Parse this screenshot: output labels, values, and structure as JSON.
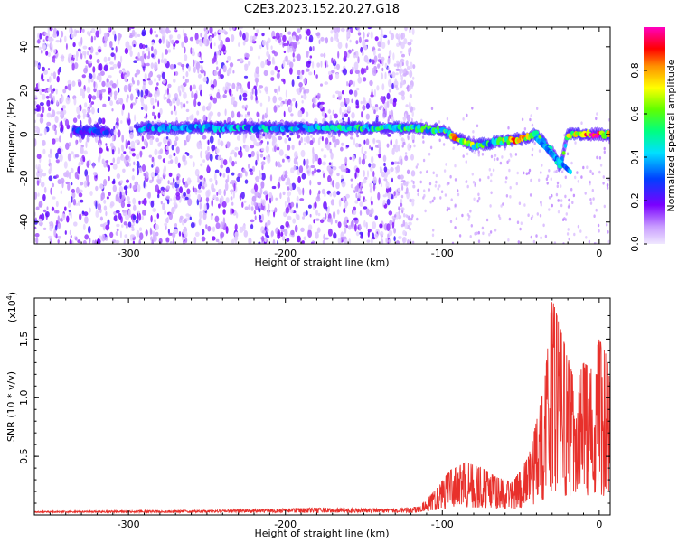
{
  "title": "C2E3.2023.152.20.27.G18",
  "chart_data": [
    {
      "type": "heatmap",
      "xlabel": "Height of straight line (km)",
      "ylabel": "Frequency (Hz)",
      "xlim": [
        -360,
        7
      ],
      "ylim": [
        -50,
        49
      ],
      "xticks": [
        -300,
        -200,
        -100,
        0
      ],
      "yticks": [
        -40,
        -20,
        0,
        20,
        40
      ],
      "colorbar": {
        "label": "Normalized spectral amplitude",
        "range": [
          0.0,
          1.0
        ],
        "ticks": [
          0.0,
          0.2,
          0.4,
          0.6,
          0.8
        ],
        "colormap": "rainbow"
      },
      "ridge": {
        "x": [
          -335,
          -310,
          -300,
          -290,
          -200,
          -150,
          -120,
          -100,
          -90,
          -80,
          -70,
          -60,
          -50,
          -40,
          -30,
          -25,
          -20,
          -10,
          0,
          7
        ],
        "y": [
          1.5,
          1.5,
          1.5,
          3,
          3,
          3,
          3,
          2,
          -2,
          -5,
          -4,
          -3,
          -2,
          0,
          -8,
          -15,
          0,
          0,
          0,
          0
        ],
        "amplitude": [
          0.3,
          0.3,
          0.15,
          0.4,
          0.45,
          0.5,
          0.55,
          0.6,
          0.8,
          0.65,
          0.5,
          0.75,
          0.85,
          0.6,
          0.5,
          0.45,
          0.7,
          0.9,
          1.0,
          0.8
        ]
      },
      "noise_region_x": [
        -360,
        -130
      ]
    },
    {
      "type": "line",
      "xlabel": "Height of straight line (km)",
      "ylabel": "SNR (10 * v/v)",
      "yscale_label": "(x10",
      "yscale_exp": "4",
      "yscale_suffix": ")",
      "xlim": [
        -360,
        7
      ],
      "ylim": [
        0,
        1.85
      ],
      "xticks": [
        -300,
        -200,
        -100,
        0
      ],
      "yticks": [
        0.5,
        1.0,
        1.5
      ],
      "series": [
        {
          "color": "#e8302b",
          "envelope": {
            "x": [
              -360,
              -250,
              -180,
              -130,
              -115,
              -105,
              -95,
              -85,
              -75,
              -65,
              -55,
              -45,
              -40,
              -35,
              -30,
              -25,
              -20,
              -15,
              -10,
              -5,
              0,
              5,
              7
            ],
            "y": [
              0.03,
              0.04,
              0.06,
              0.05,
              0.07,
              0.2,
              0.38,
              0.45,
              0.4,
              0.32,
              0.28,
              0.5,
              0.8,
              1.1,
              1.85,
              1.6,
              1.35,
              1.1,
              1.3,
              1.25,
              1.5,
              1.35,
              1.1
            ]
          }
        }
      ]
    }
  ]
}
